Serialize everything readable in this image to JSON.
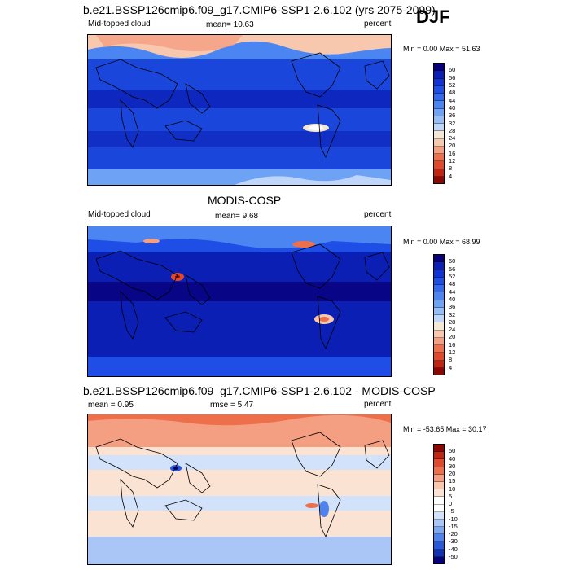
{
  "season": "DJF",
  "panels": [
    {
      "title": "b.e21.BSSP126cmip6.f09_g17.CMIP6-SSP1-2.6.102 (yrs 2075-2099)",
      "left": "Mid-topped cloud",
      "center": "mean=  10.63",
      "right": "percent",
      "minmax": "Min =   0.00 Max =  51.63",
      "colorbar_labels": [
        "60",
        "56",
        "52",
        "48",
        "44",
        "40",
        "36",
        "32",
        "28",
        "24",
        "20",
        "16",
        "12",
        "8",
        "4"
      ]
    },
    {
      "title": "MODIS-COSP",
      "left": "Mid-topped cloud",
      "center": "mean=   9.68",
      "right": "percent",
      "minmax": "Min =   0.00 Max =  68.99",
      "colorbar_labels": [
        "60",
        "56",
        "52",
        "48",
        "44",
        "40",
        "36",
        "32",
        "28",
        "24",
        "20",
        "16",
        "12",
        "8",
        "4"
      ]
    },
    {
      "title": "b.e21.BSSP126cmip6.f09_g17.CMIP6-SSP1-2.6.102 - MODIS-COSP",
      "left": "mean =   0.95",
      "center": "rmse =   5.47",
      "right": "percent",
      "minmax": "Min = -53.65 Max =  30.17",
      "colorbar_labels": [
        "50",
        "40",
        "30",
        "20",
        "15",
        "10",
        "5",
        "0",
        "-5",
        "-10",
        "-15",
        "-20",
        "-30",
        "-40",
        "-50"
      ]
    }
  ],
  "colors": {
    "seq": [
      "#08007a",
      "#0b1fb5",
      "#1133d6",
      "#1f4ee6",
      "#3369ee",
      "#4a85f2",
      "#6ea2f5",
      "#97bdf6",
      "#bfd6fa",
      "#f5e7d6",
      "#f7c7ae",
      "#f49e82",
      "#ee6f4c",
      "#e04a2a",
      "#c22412",
      "#8d0606"
    ],
    "div": [
      "#8d0606",
      "#c22412",
      "#e04a2a",
      "#ee6f4c",
      "#f49e82",
      "#f7c7ae",
      "#fbe3d3",
      "#ffffff",
      "#ffffff",
      "#d3e2fb",
      "#aac6f6",
      "#7ea6f2",
      "#4f82ec",
      "#2958dc",
      "#1131b4",
      "#08007a"
    ]
  }
}
